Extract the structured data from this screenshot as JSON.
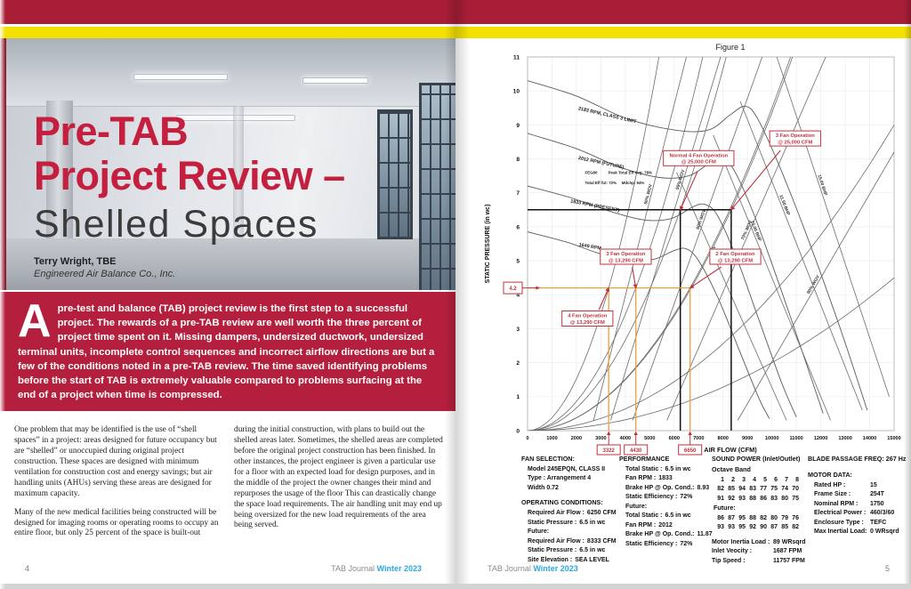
{
  "left_page": {
    "title_line1": "Pre-TAB",
    "title_line2": "Project Review –",
    "subtitle": "Shelled Spaces",
    "author": "Terry Wright, TBE",
    "author_org": "Engineered Air Balance Co., Inc.",
    "intro_dropcap": "A",
    "intro_text": "pre-test and balance (TAB) project review is the first step to a successful project. The rewards of a pre-TAB review are well worth the three percent of project time spent on it. Missing dampers, undersized ductwork, undersized terminal units, incomplete control sequences and incorrect airflow directions are but a few of the conditions noted in a pre-TAB review. The time saved identifying problems before the start of TAB is extremely valuable compared to problems surfacing at the end of a project when time is compressed.",
    "col1_p1": "One problem that may be identified is the use of “shell spaces” in a project: areas designed for future occupancy but are “shelled” or unoccupied during original project construction. These spaces are designed with minimum ventilation for construction cost and energy savings; but air handling units (AHUs) serving these areas are designed for maximum capacity.",
    "col1_p2": "Many of the new medical facilities being constructed will be designed for imaging rooms or operating rooms to occupy an entire floor, but only 25 percent of the space is built-out",
    "col2_p1": "during the initial construction, with plans to build out the shelled areas later. Sometimes, the shelled areas are completed before the original project construction has been finished. In other instances, the project engineer is given a particular use for a floor with an expected load for design purposes, and in the middle of the project the owner changes their mind and repurposes the usage of the floor This can drastically change the space load requirements. The air handling unit may end up being oversized for the new load requirements of the area being served.",
    "footer_page": "4",
    "footer_journal": "TAB Journal",
    "footer_issue": "Winter 2023"
  },
  "right_page": {
    "footer_page": "5",
    "footer_journal": "TAB Journal",
    "footer_issue": "Winter 2023",
    "panels": {
      "fan_selection": {
        "heading": "FAN SELECTION:",
        "lines": [
          "Model 245EPQN, CLASS II",
          "Type : Arrangement 4",
          "Width 0.72"
        ]
      },
      "operating_conditions": {
        "heading": "OPERATING CONDITIONS:",
        "rows": [
          {
            "label": "Required Air Flow :",
            "value": "6250 CFM"
          },
          {
            "label": "Static Pressure :",
            "value": "6.5 in wc"
          },
          {
            "label": "Future:",
            "value": ""
          },
          {
            "label": "Required Air Flow :",
            "value": "8333 CFM"
          },
          {
            "label": "Static Pressure :",
            "value": "6.5 in wc"
          },
          {
            "label": "Site Elevation :",
            "value": "SEA LEVEL"
          }
        ]
      },
      "performance": {
        "heading": "PERFORMANCE",
        "rows": [
          {
            "label": "Total Static :",
            "value": "6.5 in wc"
          },
          {
            "label": "Fan RPM :",
            "value": "1833"
          },
          {
            "label": "Brake HP @ Op. Cond.:",
            "value": "8.93"
          },
          {
            "label": "Static Efficiency :",
            "value": "72%"
          },
          {
            "label": "Future:",
            "value": ""
          },
          {
            "label": "Total Static :",
            "value": "6.5 in wc"
          },
          {
            "label": "Fan RPM :",
            "value": "2012"
          },
          {
            "label": "Brake HP @ Op. Cond.:",
            "value": "11.87"
          },
          {
            "label": "Static Efficiency :",
            "value": "72%"
          }
        ]
      },
      "sound_power": {
        "heading": "SOUND POWER (Inlet/Outlet)",
        "subheading": "Octave Band",
        "band_numbers": [
          "1",
          "2",
          "3",
          "4",
          "5",
          "6",
          "7",
          "8"
        ],
        "rows": [
          [
            "82",
            "85",
            "94",
            "83",
            "77",
            "75",
            "74",
            "70"
          ],
          [
            "91",
            "92",
            "93",
            "88",
            "86",
            "83",
            "80",
            "75"
          ]
        ],
        "future_label": "Future:",
        "future_rows": [
          [
            "86",
            "87",
            "95",
            "88",
            "82",
            "80",
            "79",
            "76"
          ],
          [
            "93",
            "93",
            "95",
            "92",
            "90",
            "87",
            "85",
            "82"
          ]
        ],
        "extra_rows": [
          {
            "label": "Motor Inertia Load :",
            "value": "89 WRsqrd"
          },
          {
            "label": "Inlet Veocity :",
            "value": "1687 FPM"
          },
          {
            "label": "Tip Speed :",
            "value": "11757 FPM"
          }
        ]
      },
      "blade_passage": {
        "heading": "BLADE PASSAGE FREQ:",
        "value": "267 Hz"
      },
      "motor_data": {
        "heading": "MOTOR DATA:",
        "rows": [
          {
            "label": "Rated HP :",
            "value": "15"
          },
          {
            "label": "Frame Size :",
            "value": "254T"
          },
          {
            "label": "Nominal RPM :",
            "value": "1750"
          },
          {
            "label": "Electrical Power :",
            "value": "460/3/60"
          },
          {
            "label": "Enclosure Type :",
            "value": "TEFC"
          },
          {
            "label": "Max Inertial Load:",
            "value": "0 WRsqrd"
          }
        ]
      }
    }
  },
  "chart_data": {
    "type": "line",
    "title": "Figure 1",
    "xlabel": "AIR FLOW (CFM)",
    "ylabel": "STATIC PRESSURE (in wc)",
    "xlim": [
      0,
      15000
    ],
    "ylim": [
      0,
      11
    ],
    "x_ticks": [
      0,
      1000,
      2000,
      3000,
      4000,
      5000,
      6000,
      7000,
      8000,
      9000,
      10000,
      11000,
      12000,
      13000,
      14000,
      15000
    ],
    "y_ticks": [
      0,
      1,
      2,
      3,
      4,
      5,
      6,
      7,
      8,
      9,
      10,
      11
    ],
    "rpm_curves": [
      "2183 RPM, CLASS 3 LIMIT",
      "2012 RPM (FUTURE)",
      "1833 RPM (PRESENT)",
      "1649 RPM"
    ],
    "bhp_lines": [
      "7.50 BHP",
      "10.00 BHP",
      "11.50 BHP",
      "15.00 BHP"
    ],
    "wov_lines": [
      "50% WOV",
      "55% WOV",
      "60% WOV",
      "70% WOV",
      "90% WOV"
    ],
    "annotations": [
      {
        "line1": "Normal 4 Fan Operation",
        "line2": "@ 25,000 CFM",
        "point_cfm": 6250,
        "point_sp": 6.5
      },
      {
        "line1": "3 Fan Operation",
        "line2": "@ 25,000 CFM",
        "point_cfm": 8333,
        "point_sp": 6.5
      },
      {
        "line1": "3 Fan Operation",
        "line2": "@ 13,290 CFM",
        "point_cfm": 4430,
        "point_sp": 4.2
      },
      {
        "line1": "2 Fan Operation",
        "line2": "@ 13,290 CFM",
        "point_cfm": 6650,
        "point_sp": 4.2
      },
      {
        "line1": "4 Fan Operation",
        "line2": "@ 13,290 CFM",
        "point_cfm": 3322,
        "point_sp": 4.2
      }
    ],
    "black_lines": {
      "sp": 6.5,
      "cfm": [
        6250,
        8333
      ]
    },
    "orange_lines": {
      "sp": 4.2,
      "cfm": [
        3322,
        4430,
        6650
      ]
    },
    "flow_markers": [
      {
        "value": "3322",
        "cfm": 3322
      },
      {
        "value": "4430",
        "cfm": 4430
      },
      {
        "value": "6650",
        "cfm": 6650
      }
    ],
    "pressure_marker": {
      "value": "4.2",
      "sp": 4.2
    },
    "notes": [
      "FEG80",
      "Peak Total Eff Avg: 78%",
      "Total Eff fut: 72%",
      "Mdchp: 94%"
    ],
    "accent_red": "#c0323f",
    "accent_orange": "#e8a13c"
  }
}
